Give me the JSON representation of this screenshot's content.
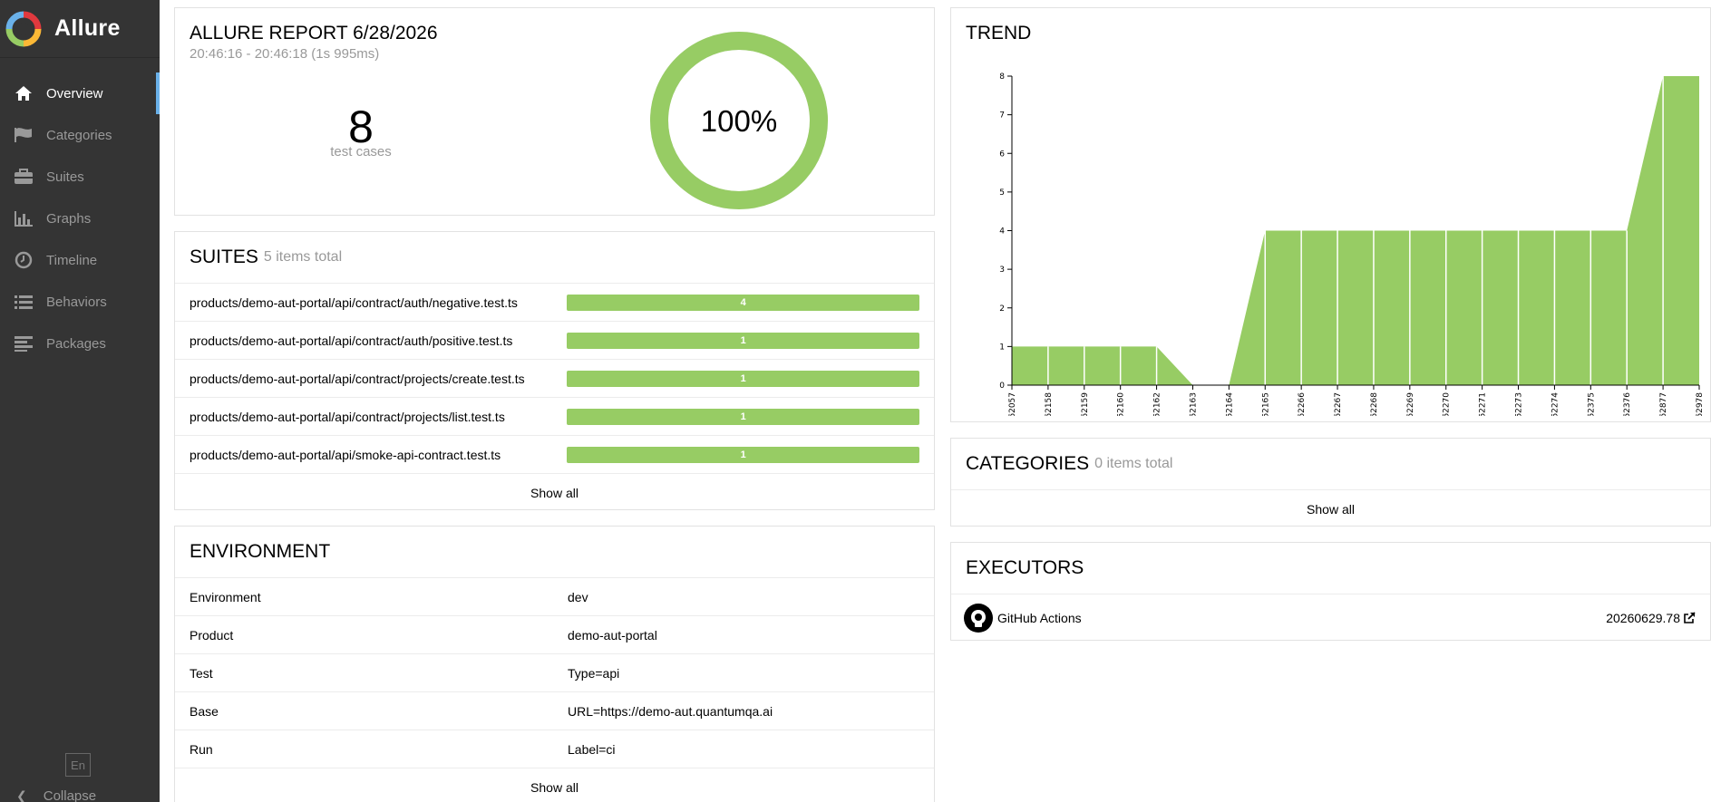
{
  "app": {
    "name": "Allure",
    "logo_icon": "allure-logo-icon"
  },
  "sidebar": {
    "items": [
      {
        "label": "Overview",
        "icon": "home-icon",
        "active": true
      },
      {
        "label": "Categories",
        "icon": "flag-icon",
        "active": false
      },
      {
        "label": "Suites",
        "icon": "briefcase-icon",
        "active": false
      },
      {
        "label": "Graphs",
        "icon": "bar-chart-icon",
        "active": false
      },
      {
        "label": "Timeline",
        "icon": "clock-icon",
        "active": false
      },
      {
        "label": "Behaviors",
        "icon": "list-icon",
        "active": false
      },
      {
        "label": "Packages",
        "icon": "align-left-icon",
        "active": false
      }
    ],
    "language": "En",
    "collapse_label": "Collapse"
  },
  "summary": {
    "title": "ALLURE REPORT 6/28/2026",
    "time_range": "20:46:16 - 20:46:18 (1s 995ms)",
    "test_count": "8",
    "test_count_label": "test cases",
    "pass_rate": "100%",
    "pass_fraction": 1.0
  },
  "suites": {
    "title": "SUITES",
    "total": "5 items total",
    "items": [
      {
        "name": "products/demo-aut-portal/api/contract/auth/negative.test.ts",
        "count": "4"
      },
      {
        "name": "products/demo-aut-portal/api/contract/auth/positive.test.ts",
        "count": "1"
      },
      {
        "name": "products/demo-aut-portal/api/contract/projects/create.test.ts",
        "count": "1"
      },
      {
        "name": "products/demo-aut-portal/api/contract/projects/list.test.ts",
        "count": "1"
      },
      {
        "name": "products/demo-aut-portal/api/smoke-api-contract.test.ts",
        "count": "1"
      }
    ],
    "show_all": "Show all"
  },
  "environment": {
    "title": "ENVIRONMENT",
    "rows": [
      {
        "key": "Environment",
        "value": "dev"
      },
      {
        "key": "Product",
        "value": "demo-aut-portal"
      },
      {
        "key": "Test",
        "value": "Type=api"
      },
      {
        "key": "Base",
        "value": "URL=https://demo-aut.quantumqa.ai"
      },
      {
        "key": "Run",
        "value": "Label=ci"
      }
    ],
    "show_all": "Show all"
  },
  "trend": {
    "title": "TREND"
  },
  "categories": {
    "title": "CATEGORIES",
    "total": "0 items total",
    "show_all": "Show all"
  },
  "executors": {
    "title": "EXECUTORS",
    "name": "GitHub Actions",
    "icon": "github-icon",
    "build": "20260629.78",
    "link_icon": "external-link-icon"
  },
  "colors": {
    "passed": "#97cc64",
    "sidebar": "#343434",
    "active_accent": "#6ab1e9"
  },
  "chart_data": {
    "type": "area",
    "title": "",
    "xlabel": "",
    "ylabel": "",
    "x": [
      "2026062057",
      "2026062158",
      "2026062159",
      "2026062160",
      "2026062162",
      "2026062163",
      "2026062164",
      "2026062165",
      "2026062266",
      "2026062267",
      "2026062268",
      "2026062269",
      "2026062270",
      "2026062271",
      "2026062273",
      "2026062274",
      "2026062375",
      "2026062376",
      "2026062877",
      "2026062978"
    ],
    "tick_labels": [
      "26062057",
      "26062158",
      "26062159",
      "26062160",
      "26062162",
      "26062163",
      "26062164",
      "26062165",
      "26062266",
      "26062267",
      "26062268",
      "26062269",
      "26062270",
      "26062271",
      "26062273",
      "26062274",
      "26062375",
      "26062376",
      "26062877",
      "26062978"
    ],
    "series": [
      {
        "name": "passed",
        "values": [
          1,
          1,
          1,
          1,
          1,
          0,
          0,
          4,
          4,
          4,
          4,
          4,
          4,
          4,
          4,
          4,
          4,
          4,
          8,
          8
        ]
      }
    ],
    "ylim": [
      0,
      8
    ],
    "yticks": [
      "0",
      "1",
      "2",
      "3",
      "4",
      "5",
      "6",
      "7",
      "8"
    ],
    "grid": false,
    "legend": "none"
  }
}
